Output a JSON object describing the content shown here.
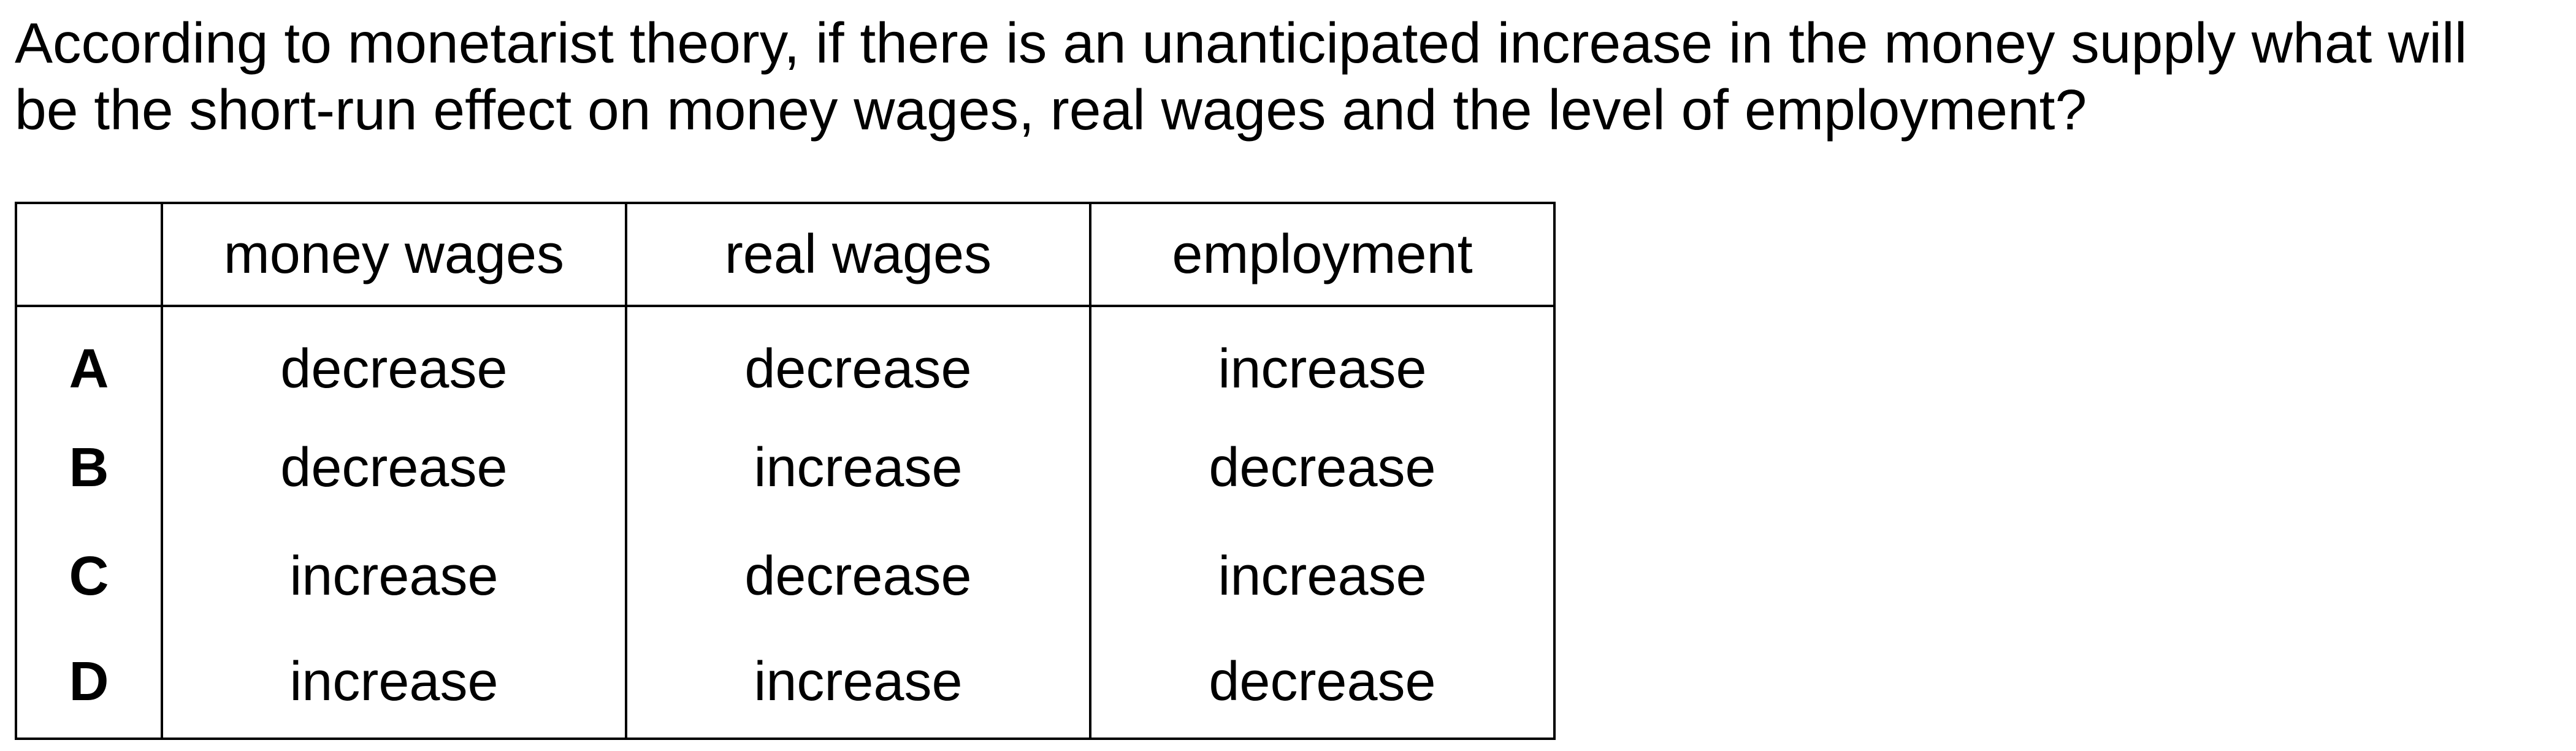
{
  "question": {
    "line1": "According to monetarist theory, if there is an unanticipated increase in the money supply what will",
    "line2": "be the short-run effect on money wages, real wages and the level of employment?"
  },
  "table": {
    "headers": [
      "",
      "money wages",
      "real wages",
      "employment"
    ],
    "rows": [
      {
        "letter": "A",
        "money_wages": "decrease",
        "real_wages": "decrease",
        "employment": "increase"
      },
      {
        "letter": "B",
        "money_wages": "decrease",
        "real_wages": "increase",
        "employment": "decrease"
      },
      {
        "letter": "C",
        "money_wages": "increase",
        "real_wages": "decrease",
        "employment": "increase"
      },
      {
        "letter": "D",
        "money_wages": "increase",
        "real_wages": "increase",
        "employment": "decrease"
      }
    ]
  }
}
